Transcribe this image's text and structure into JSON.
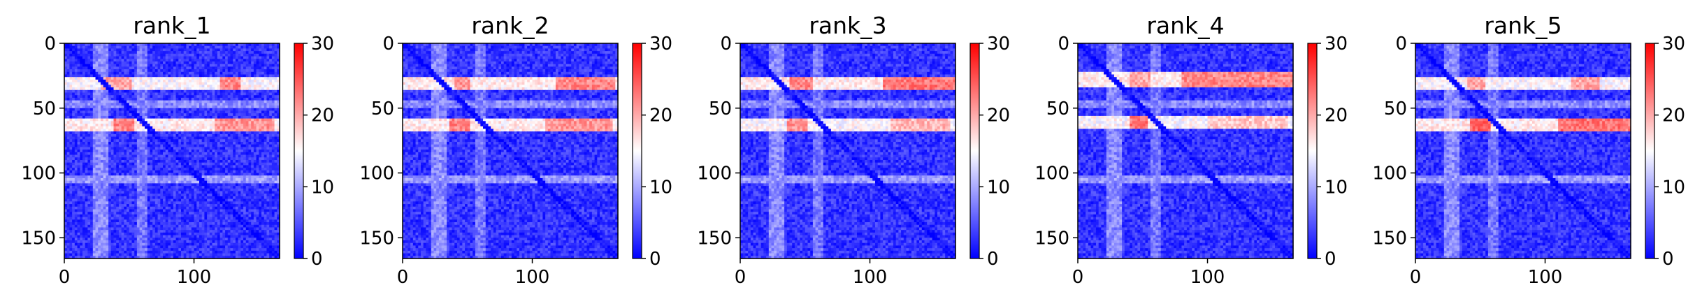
{
  "chart_data": [
    {
      "type": "heatmap",
      "title": "rank_1",
      "xlim": [
        0,
        166
      ],
      "ylim": [
        166,
        0
      ],
      "xticks": [
        0,
        100
      ],
      "yticks": [
        0,
        50,
        100,
        150
      ],
      "colorbar": {
        "range": [
          0,
          30
        ],
        "ticks": [
          0,
          10,
          20,
          30
        ],
        "colormap": "bwr"
      },
      "background_value": 3,
      "bands": [
        {
          "orientation": "horizontal",
          "range": [
            26,
            34
          ],
          "value": 15,
          "hotspots": [
            [
              28,
              50,
              20
            ],
            [
              120,
              135,
              22
            ]
          ]
        },
        {
          "orientation": "horizontal",
          "range": [
            58,
            66
          ],
          "value": 16,
          "hotspots": [
            [
              38,
              52,
              22
            ],
            [
              115,
              160,
              21
            ]
          ]
        },
        {
          "orientation": "horizontal",
          "range": [
            43,
            48
          ],
          "value": 8
        },
        {
          "orientation": "horizontal",
          "range": [
            102,
            106
          ],
          "value": 9
        },
        {
          "orientation": "vertical",
          "range": [
            22,
            32
          ],
          "value": 8
        },
        {
          "orientation": "vertical",
          "range": [
            56,
            62
          ],
          "value": 7
        }
      ]
    },
    {
      "type": "heatmap",
      "title": "rank_2",
      "xlim": [
        0,
        166
      ],
      "ylim": [
        166,
        0
      ],
      "xticks": [
        0,
        100
      ],
      "yticks": [
        0,
        50,
        100,
        150
      ],
      "colorbar": {
        "range": [
          0,
          30
        ],
        "ticks": [
          0,
          10,
          20,
          30
        ],
        "colormap": "bwr"
      },
      "background_value": 3,
      "bands": [
        {
          "orientation": "horizontal",
          "range": [
            26,
            35
          ],
          "value": 16,
          "hotspots": [
            [
              40,
              50,
              21
            ],
            [
              118,
              162,
              22
            ]
          ]
        },
        {
          "orientation": "horizontal",
          "range": [
            58,
            66
          ],
          "value": 16,
          "hotspots": [
            [
              35,
              50,
              22
            ],
            [
              110,
              160,
              21
            ]
          ]
        },
        {
          "orientation": "horizontal",
          "range": [
            43,
            48
          ],
          "value": 8
        },
        {
          "orientation": "horizontal",
          "range": [
            102,
            106
          ],
          "value": 9
        },
        {
          "orientation": "vertical",
          "range": [
            22,
            32
          ],
          "value": 8
        },
        {
          "orientation": "vertical",
          "range": [
            56,
            62
          ],
          "value": 7
        }
      ]
    },
    {
      "type": "heatmap",
      "title": "rank_3",
      "xlim": [
        0,
        166
      ],
      "ylim": [
        166,
        0
      ],
      "xticks": [
        0,
        100
      ],
      "yticks": [
        0,
        50,
        100,
        150
      ],
      "colorbar": {
        "range": [
          0,
          30
        ],
        "ticks": [
          0,
          10,
          20,
          30
        ],
        "colormap": "bwr"
      },
      "background_value": 3,
      "bands": [
        {
          "orientation": "horizontal",
          "range": [
            25,
            35
          ],
          "value": 16,
          "hotspots": [
            [
              38,
              55,
              22
            ],
            [
              110,
              166,
              23
            ]
          ]
        },
        {
          "orientation": "horizontal",
          "range": [
            58,
            66
          ],
          "value": 15,
          "hotspots": [
            [
              35,
              50,
              21
            ],
            [
              115,
              160,
              19
            ]
          ]
        },
        {
          "orientation": "horizontal",
          "range": [
            43,
            48
          ],
          "value": 8
        },
        {
          "orientation": "horizontal",
          "range": [
            102,
            106
          ],
          "value": 9
        },
        {
          "orientation": "vertical",
          "range": [
            22,
            32
          ],
          "value": 8
        },
        {
          "orientation": "vertical",
          "range": [
            56,
            62
          ],
          "value": 7
        }
      ]
    },
    {
      "type": "heatmap",
      "title": "rank_4",
      "xlim": [
        0,
        166
      ],
      "ylim": [
        166,
        0
      ],
      "xticks": [
        0,
        100
      ],
      "yticks": [
        0,
        50,
        100,
        150
      ],
      "colorbar": {
        "range": [
          0,
          30
        ],
        "ticks": [
          0,
          10,
          20,
          30
        ],
        "colormap": "bwr"
      },
      "background_value": 3,
      "bands": [
        {
          "orientation": "horizontal",
          "range": [
            22,
            33
          ],
          "value": 16,
          "hotspots": [
            [
              40,
              55,
              20
            ],
            [
              80,
              166,
              22
            ]
          ]
        },
        {
          "orientation": "horizontal",
          "range": [
            56,
            64
          ],
          "value": 15,
          "hotspots": [
            [
              40,
              52,
              23
            ],
            [
              100,
              160,
              18
            ]
          ]
        },
        {
          "orientation": "horizontal",
          "range": [
            43,
            48
          ],
          "value": 8
        },
        {
          "orientation": "horizontal",
          "range": [
            102,
            106
          ],
          "value": 9
        },
        {
          "orientation": "vertical",
          "range": [
            22,
            32
          ],
          "value": 8
        },
        {
          "orientation": "vertical",
          "range": [
            56,
            62
          ],
          "value": 7
        }
      ]
    },
    {
      "type": "heatmap",
      "title": "rank_5",
      "xlim": [
        0,
        166
      ],
      "ylim": [
        166,
        0
      ],
      "xticks": [
        0,
        100
      ],
      "yticks": [
        0,
        50,
        100,
        150
      ],
      "colorbar": {
        "range": [
          0,
          30
        ],
        "ticks": [
          0,
          10,
          20,
          30
        ],
        "colormap": "bwr"
      },
      "background_value": 3,
      "bands": [
        {
          "orientation": "horizontal",
          "range": [
            26,
            34
          ],
          "value": 15,
          "hotspots": [
            [
              40,
              52,
              20
            ],
            [
              120,
              140,
              20
            ]
          ]
        },
        {
          "orientation": "horizontal",
          "range": [
            58,
            66
          ],
          "value": 16,
          "hotspots": [
            [
              42,
              56,
              24
            ],
            [
              110,
              166,
              23
            ]
          ]
        },
        {
          "orientation": "horizontal",
          "range": [
            43,
            48
          ],
          "value": 8
        },
        {
          "orientation": "horizontal",
          "range": [
            102,
            106
          ],
          "value": 9
        },
        {
          "orientation": "vertical",
          "range": [
            22,
            32
          ],
          "value": 8
        },
        {
          "orientation": "vertical",
          "range": [
            56,
            62
          ],
          "value": 7
        }
      ]
    }
  ]
}
